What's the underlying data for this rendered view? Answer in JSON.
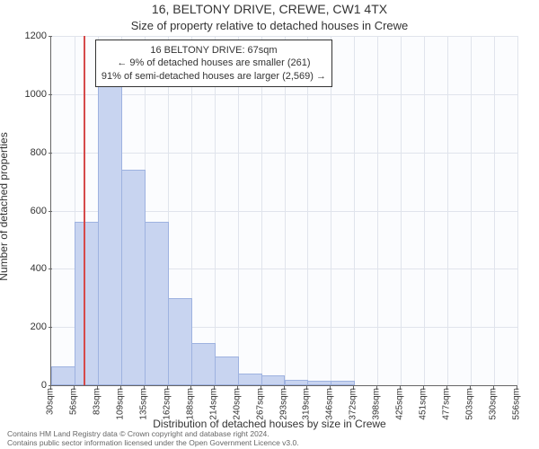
{
  "title": "16, BELTONY DRIVE, CREWE, CW1 4TX",
  "subtitle": "Size of property relative to detached houses in Crewe",
  "chart": {
    "type": "histogram",
    "background_color": "#fbfcfe",
    "grid_color": "#e0e4ec",
    "axis_color": "#666666",
    "bar_fill": "#c8d4f0",
    "bar_stroke": "#9eb2e0",
    "marker_color": "#d64a4a",
    "ylabel": "Number of detached properties",
    "xlabel": "Distribution of detached houses by size in Crewe",
    "ylim": [
      0,
      1200
    ],
    "ytick_step": 200,
    "categories": [
      "30sqm",
      "56sqm",
      "83sqm",
      "109sqm",
      "135sqm",
      "162sqm",
      "188sqm",
      "214sqm",
      "240sqm",
      "267sqm",
      "293sqm",
      "319sqm",
      "346sqm",
      "372sqm",
      "398sqm",
      "425sqm",
      "451sqm",
      "477sqm",
      "503sqm",
      "530sqm",
      "556sqm"
    ],
    "values": [
      65,
      560,
      1080,
      740,
      560,
      300,
      145,
      100,
      40,
      35,
      20,
      15,
      15,
      0,
      0,
      0,
      0,
      0,
      0,
      0
    ],
    "marker_x_sqm": 67,
    "title_fontsize": 14,
    "subtitle_fontsize": 13,
    "label_fontsize": 12,
    "tick_fontsize": 11,
    "xtick_fontsize": 10,
    "annotation_fontsize": 11
  },
  "annotation": {
    "line1": "16 BELTONY DRIVE: 67sqm",
    "line2": "← 9% of detached houses are smaller (261)",
    "line3": "91% of semi-detached houses are larger (2,569) →",
    "border_color": "#333333",
    "background_color": "#ffffff"
  },
  "footer": {
    "line1": "Contains HM Land Registry data © Crown copyright and database right 2024.",
    "line2": "Contains public sector information licensed under the Open Government Licence v3.0."
  }
}
